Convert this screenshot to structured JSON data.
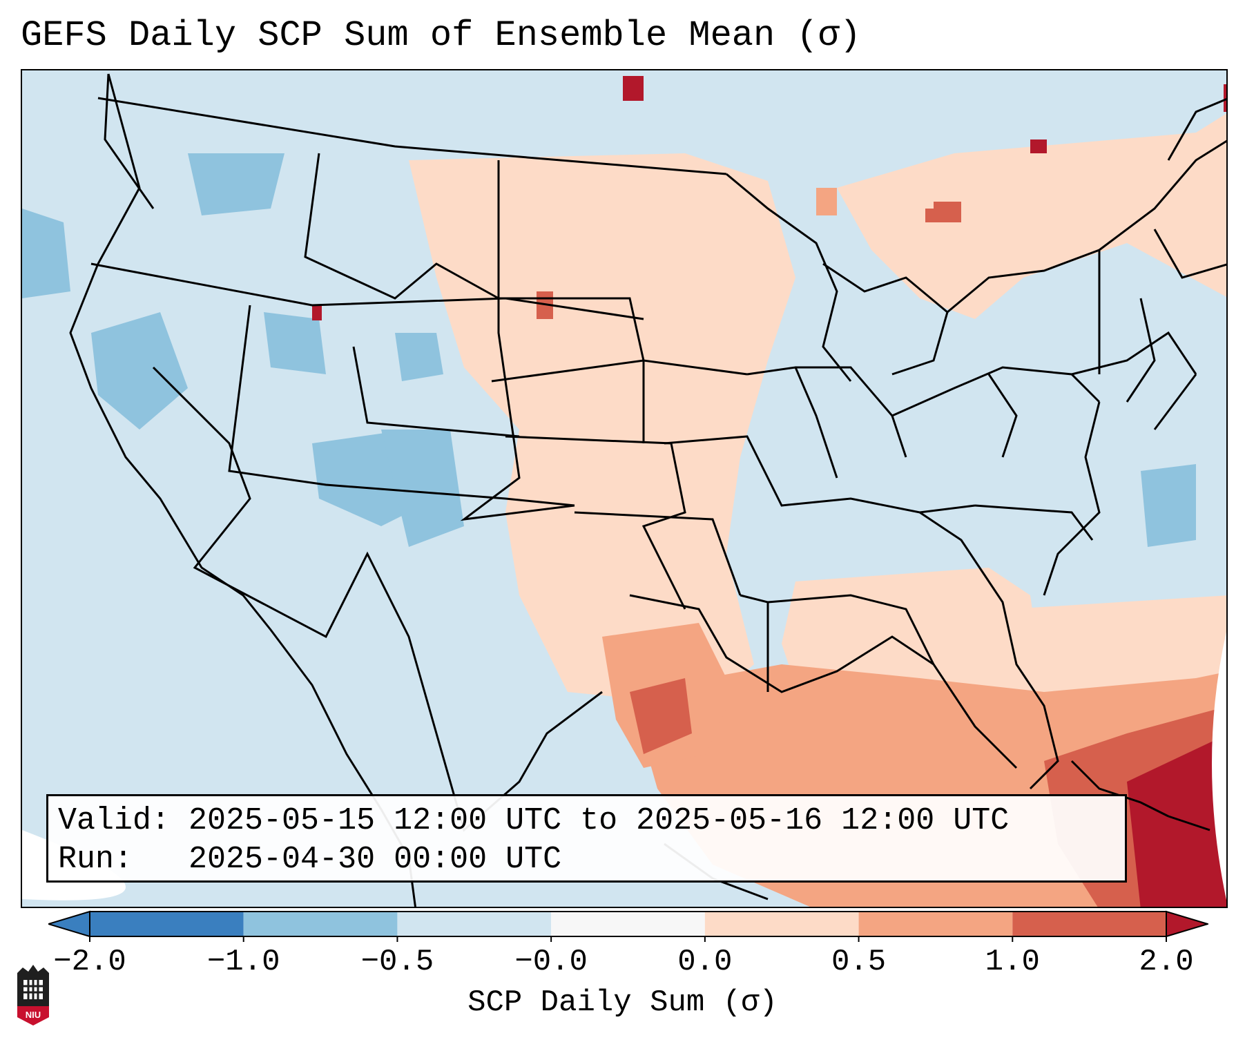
{
  "title": "GEFS Daily SCP Sum of Ensemble Mean (σ)",
  "info": {
    "valid_line": "Valid: 2025-05-15 12:00 UTC to 2025-05-16 12:00 UTC",
    "run_line": "Run:   2025-04-30 00:00 UTC"
  },
  "colorbar": {
    "label": "SCP Daily Sum (σ)",
    "ticks": [
      "−2.0",
      "−1.0",
      "−0.5",
      "−0.0",
      "0.0",
      "0.5",
      "1.0",
      "2.0"
    ],
    "colors": [
      "#3a7fbf",
      "#8fc3de",
      "#d1e5f0",
      "#f7f7f7",
      "#fddbc7",
      "#f4a582",
      "#d6604d",
      "#b2182b"
    ],
    "extend": "both"
  },
  "map": {
    "region": "Contiguous United States",
    "background_color": "#d1e5f0"
  },
  "logo": {
    "text": "NIU"
  }
}
